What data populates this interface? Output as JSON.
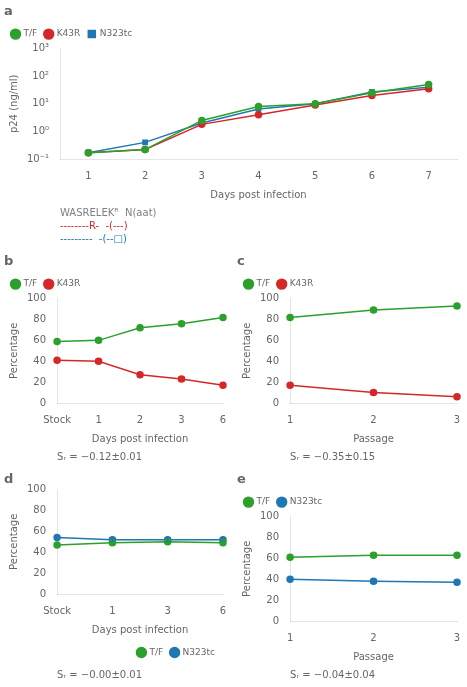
{
  "chart_data": [
    {
      "type": "line",
      "title": "a",
      "xlabel": "Days post infection",
      "ylabel": "p24 (ng/ml)",
      "x": [
        1,
        2,
        3,
        4,
        5,
        6,
        7
      ],
      "xlim": [
        0.5,
        7.5
      ],
      "xticks": [
        1,
        2,
        3,
        4,
        5,
        6,
        7
      ],
      "ylim": [
        0.1,
        1000
      ],
      "yticks": [
        {
          "value": 0.1,
          "label": "10⁻¹"
        },
        {
          "value": 1,
          "label": "10⁰"
        },
        {
          "value": 10,
          "label": "10¹"
        },
        {
          "value": 100,
          "label": "10²"
        },
        {
          "value": 1000,
          "label": "10³"
        }
      ],
      "log": "y",
      "grid": false,
      "legend": "upper left",
      "series": [
        {
          "name": "T/F",
          "color": "#2ca02c",
          "marker": "circle",
          "values": [
            0.17,
            0.22,
            2.5,
            8.0,
            10.0,
            25.0,
            50.0
          ]
        },
        {
          "name": "K43R",
          "color": "#d62728",
          "marker": "circle",
          "values": [
            0.17,
            0.22,
            1.8,
            4.0,
            9.0,
            20.0,
            35.0
          ]
        },
        {
          "name": "N323tc",
          "color": "#1f77b4",
          "marker": "square",
          "values": [
            0.17,
            0.4,
            2.0,
            6.5,
            10.0,
            27.0,
            40.0
          ]
        }
      ],
      "annotations": [
        {
          "text": "WASRELEKᴿ  N(aat)",
          "color": "gray"
        },
        {
          "text": "--------R-  -(---)",
          "color": "#d62728"
        },
        {
          "text": "---------  -(--□)",
          "color": "#1f77b4"
        }
      ]
    },
    {
      "type": "line",
      "title": "b",
      "xlabel": "Days post infection",
      "ylabel": "Percentage",
      "categories": [
        "Stock",
        "1",
        "2",
        "3",
        "6"
      ],
      "ylim": [
        0,
        100
      ],
      "yticks": [
        0,
        20,
        40,
        60,
        80,
        100
      ],
      "grid": false,
      "legend": "upper left",
      "series": [
        {
          "name": "T/F",
          "color": "#2ca02c",
          "marker": "circle",
          "values": [
            59,
            60,
            72,
            76,
            82
          ],
          "errors": [
            null,
            2,
            2,
            2,
            2
          ]
        },
        {
          "name": "K43R",
          "color": "#d62728",
          "marker": "circle",
          "values": [
            41,
            40,
            27,
            23,
            17
          ],
          "errors": [
            null,
            2,
            2,
            2,
            2
          ]
        }
      ],
      "annotations": [
        {
          "text": "Sᵣ = −0.12±0.01"
        }
      ]
    },
    {
      "type": "line",
      "title": "c",
      "xlabel": "Passage",
      "ylabel": "Percentage",
      "categories": [
        "1",
        "2",
        "3"
      ],
      "ylim": [
        0,
        100
      ],
      "yticks": [
        0,
        20,
        40,
        60,
        80,
        100
      ],
      "grid": false,
      "legend": "upper left",
      "series": [
        {
          "name": "T/F",
          "color": "#2ca02c",
          "marker": "circle",
          "values": [
            82,
            89,
            93
          ],
          "errors": [
            2,
            2,
            2
          ]
        },
        {
          "name": "K43R",
          "color": "#d62728",
          "marker": "circle",
          "values": [
            17,
            10,
            6
          ],
          "errors": [
            2,
            2,
            1
          ]
        }
      ],
      "annotations": [
        {
          "text": "Sᵣ = −0.35±0.15"
        }
      ]
    },
    {
      "type": "line",
      "title": "d",
      "xlabel": "Days post infection",
      "ylabel": "Percentage",
      "categories": [
        "Stock",
        "1",
        "3",
        "6"
      ],
      "ylim": [
        0,
        100
      ],
      "yticks": [
        0,
        20,
        40,
        60,
        80,
        100
      ],
      "grid": false,
      "legend": "lower right",
      "series": [
        {
          "name": "T/F",
          "color": "#2ca02c",
          "marker": "circle",
          "values": [
            47,
            49,
            50,
            49
          ],
          "errors": [
            null,
            2,
            2,
            2
          ]
        },
        {
          "name": "N323tc",
          "color": "#1f77b4",
          "marker": "circle",
          "values": [
            54,
            52,
            52,
            52
          ],
          "errors": [
            null,
            2,
            2,
            2
          ]
        }
      ],
      "annotations": [
        {
          "text": "Sᵣ = −0.00±0.01"
        }
      ]
    },
    {
      "type": "line",
      "title": "e",
      "xlabel": "Passage",
      "ylabel": "Percentage",
      "categories": [
        "1",
        "2",
        "3"
      ],
      "ylim": [
        0,
        100
      ],
      "yticks": [
        0,
        20,
        40,
        60,
        80,
        100
      ],
      "grid": false,
      "legend": "upper left",
      "series": [
        {
          "name": "T/F",
          "color": "#2ca02c",
          "marker": "circle",
          "values": [
            61,
            63,
            63
          ],
          "errors": [
            2,
            2,
            2
          ]
        },
        {
          "name": "N323tc",
          "color": "#1f77b4",
          "marker": "circle",
          "values": [
            40,
            38,
            37
          ],
          "errors": [
            2,
            2,
            2
          ]
        }
      ],
      "annotations": [
        {
          "text": "Sᵣ = −0.04±0.04"
        }
      ]
    }
  ]
}
